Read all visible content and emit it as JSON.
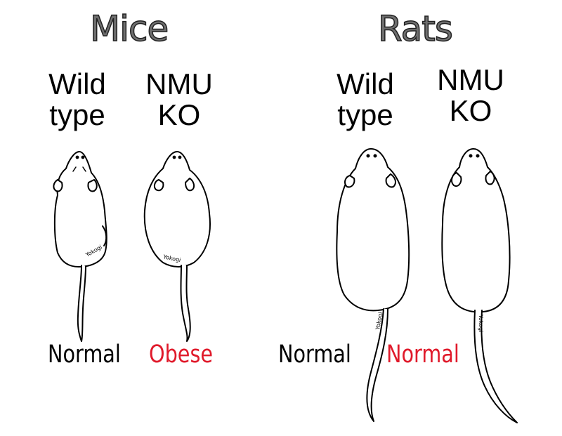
{
  "panels": {
    "mice": {
      "title": "Mice",
      "wild_type": {
        "line1": "Wild",
        "line2": "type",
        "outcome": "Normal"
      },
      "nmu_ko": {
        "line1": "NMU",
        "line2": "KO",
        "outcome": "Obese"
      }
    },
    "rats": {
      "title": "Rats",
      "wild_type": {
        "line1": "Wild",
        "line2": "type",
        "outcome": "Normal"
      },
      "nmu_ko": {
        "line1": "NMU",
        "line2": "KO",
        "outcome": "Normal"
      }
    }
  },
  "signature": "Yokogi",
  "colors": {
    "title_fill": "#6f6f6f",
    "normal": "#000000",
    "highlight": "#e01a2b"
  }
}
